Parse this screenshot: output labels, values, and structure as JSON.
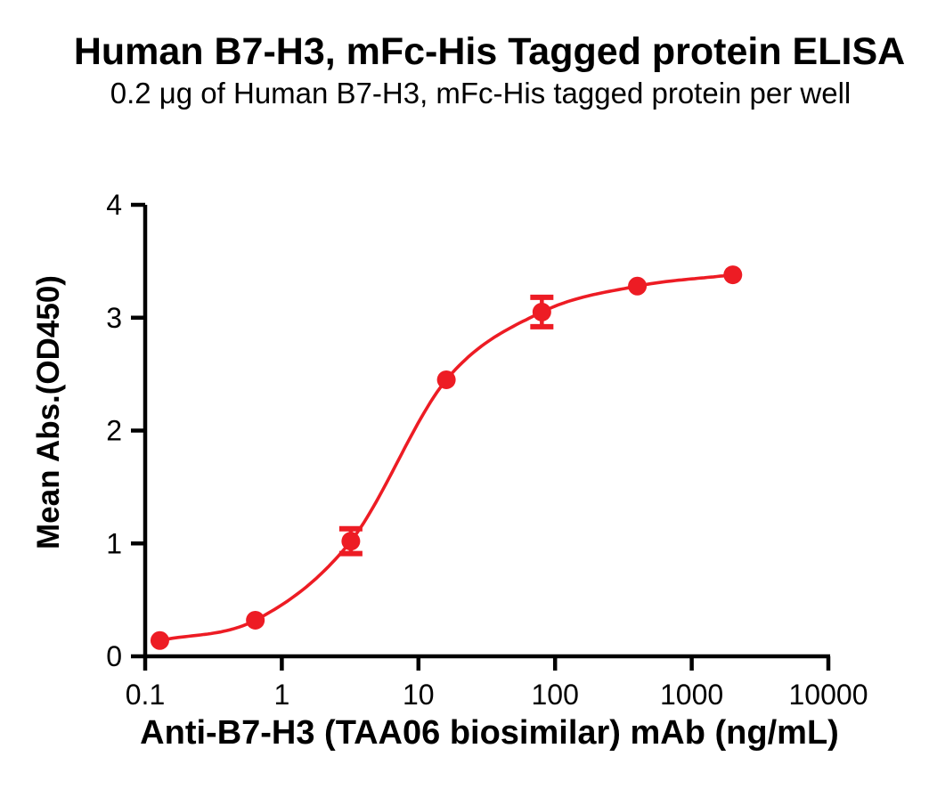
{
  "chart": {
    "title": "Human B7-H3, mFc-His Tagged protein ELISA",
    "subtitle": "0.2 μg of Human B7-H3, mFc-His tagged protein per well",
    "x_axis_title": "Anti-B7-H3 (TAA06 biosimilar) mAb (ng/mL)",
    "y_axis_title": "Mean Abs.(OD450)"
  },
  "chart_data": {
    "type": "scatter",
    "curve": "sigmoidal 4PL fit line through points",
    "title": "Human B7-H3, mFc-His Tagged protein ELISA",
    "subtitle": "0.2 μg of Human B7-H3, mFc-His tagged protein per well",
    "xlabel": "Anti-B7-H3 (TAA06 biosimilar) mAb (ng/mL)",
    "ylabel": "Mean Abs.(OD450)",
    "x_scale": "log10",
    "xlim": [
      0.1,
      10000
    ],
    "ylim": [
      0,
      4
    ],
    "x_ticks": [
      0.1,
      1,
      10,
      100,
      1000,
      10000
    ],
    "x_tick_labels": [
      "0.1",
      "1",
      "10",
      "100",
      "1000",
      "10000"
    ],
    "y_ticks": [
      0,
      1,
      2,
      3,
      4
    ],
    "y_tick_labels": [
      "0",
      "1",
      "2",
      "3",
      "4"
    ],
    "grid": "off",
    "legend": "none",
    "series": [
      {
        "name": "Anti-B7-H3 (TAA06 biosimilar) mAb",
        "x": [
          0.128,
          0.64,
          3.2,
          16,
          80,
          400,
          2000
        ],
        "y": [
          0.14,
          0.32,
          1.02,
          2.45,
          3.05,
          3.28,
          3.38
        ],
        "y_err": [
          0,
          0,
          0.11,
          0,
          0.13,
          0,
          0
        ],
        "marker": "circle",
        "color": "#ED1C24"
      }
    ],
    "colors": {
      "series": "#ED1C24",
      "axis": "#000000",
      "text": "#000000",
      "background": "#FFFFFF"
    }
  }
}
